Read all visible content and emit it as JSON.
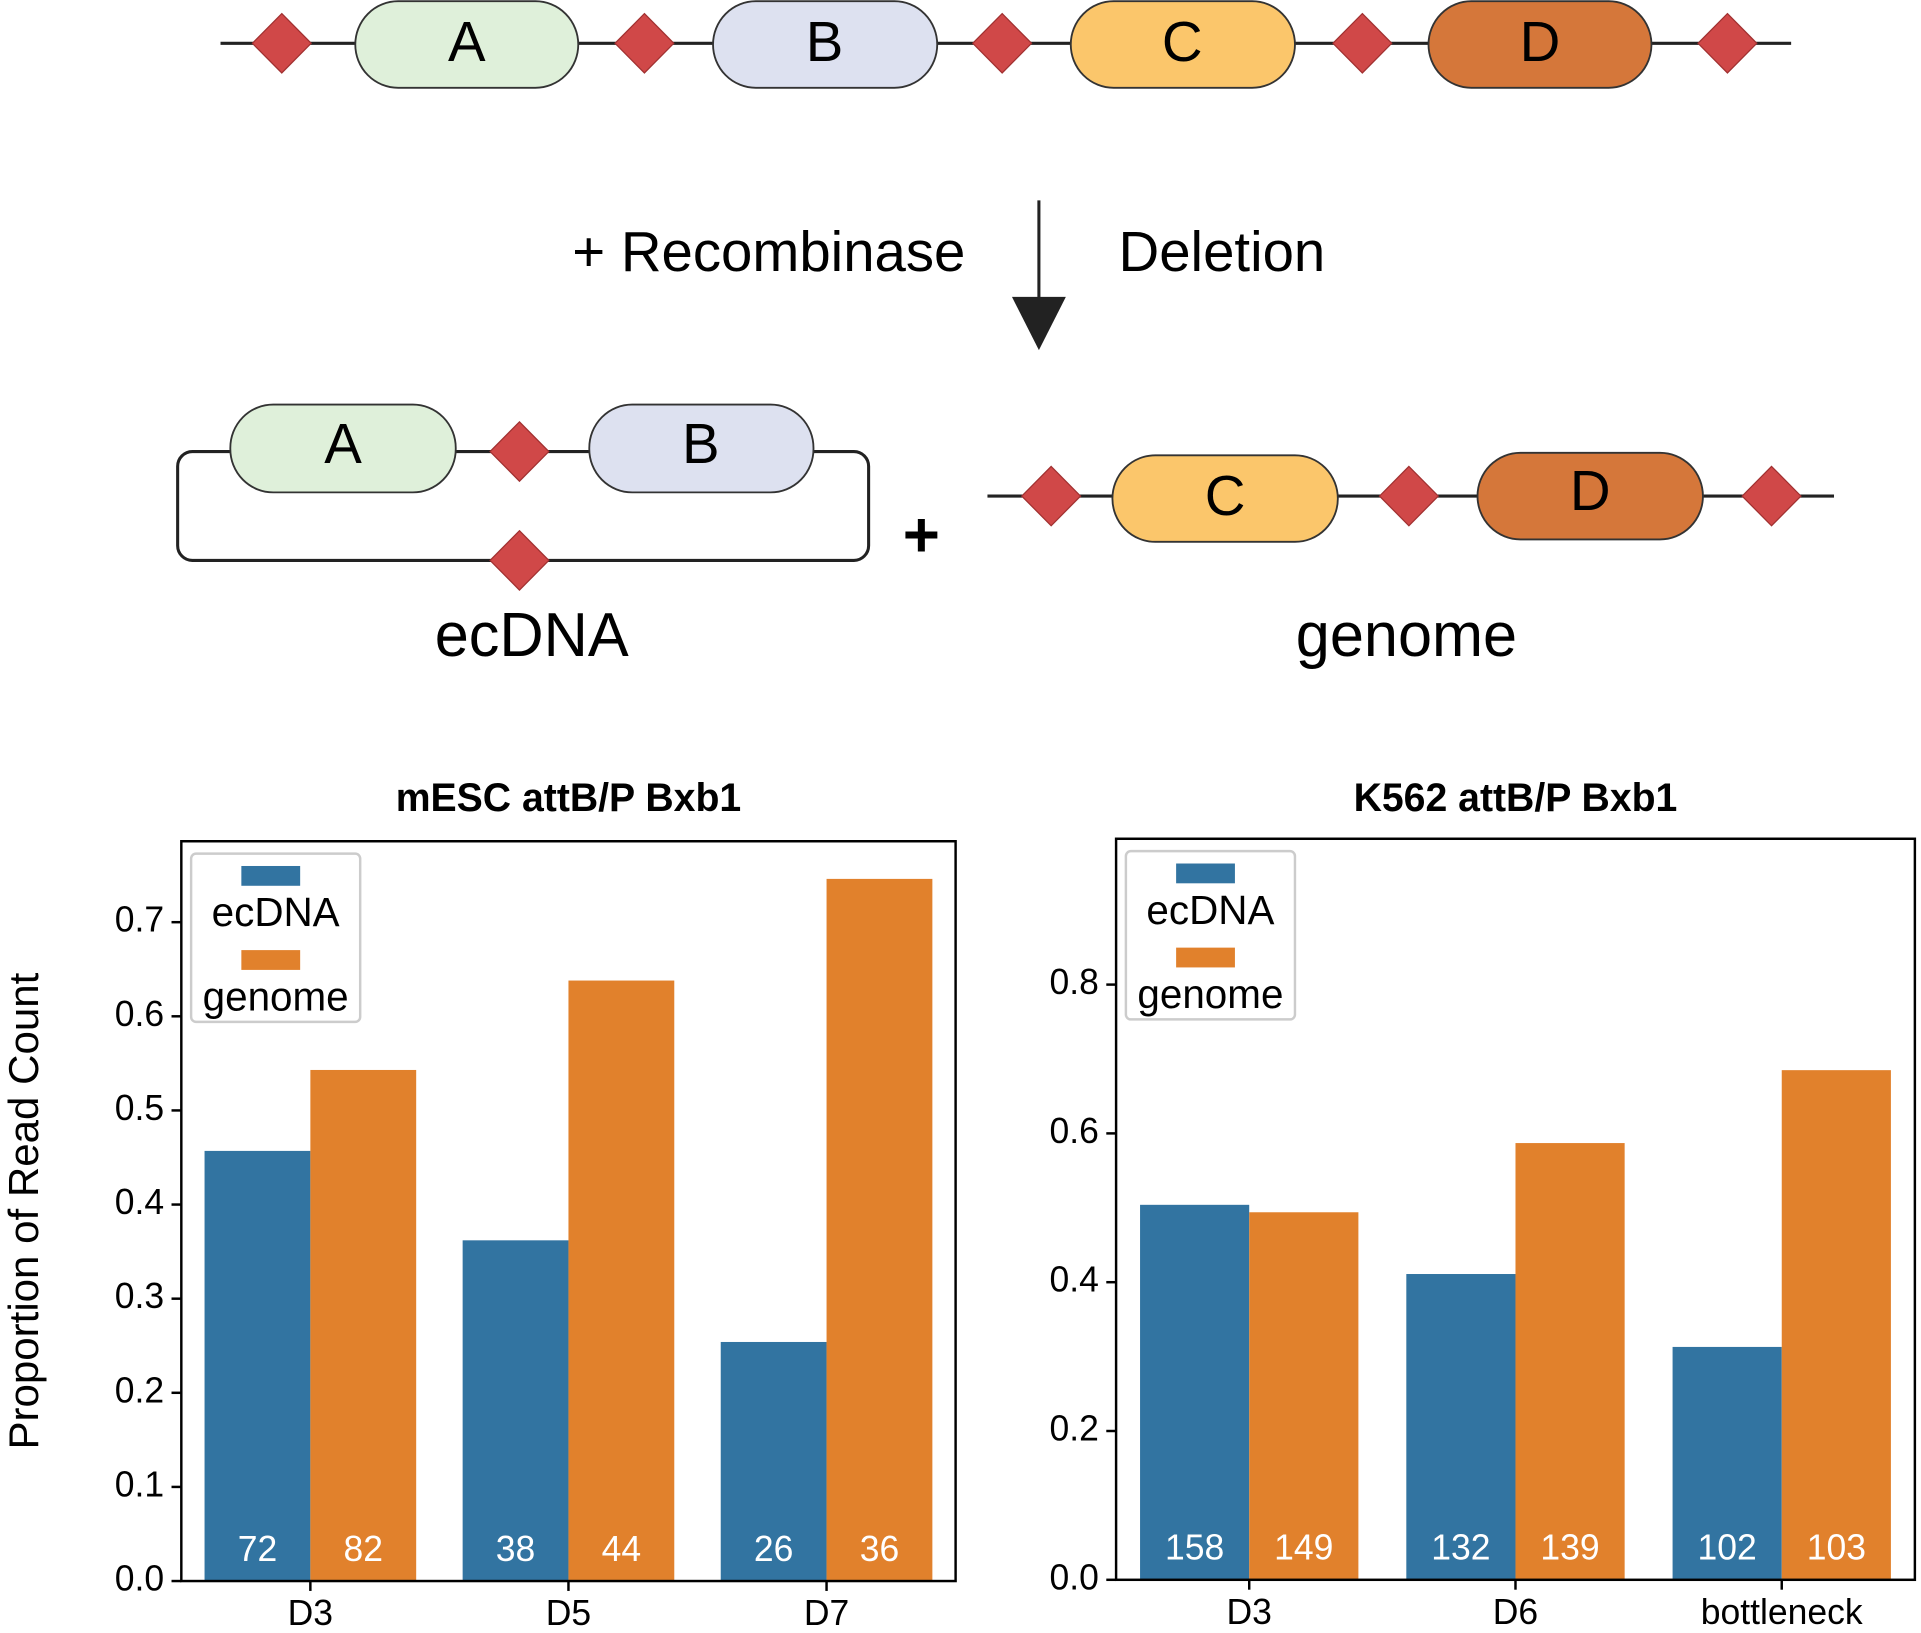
{
  "diagram": {
    "top": [
      "A",
      "B",
      "C",
      "D"
    ],
    "reagent": "+ Recombinase",
    "outcome": "Deletion",
    "ecdna": {
      "segments": [
        "A",
        "B"
      ],
      "label": "ecDNA"
    },
    "plus": "+",
    "genome": {
      "segments": [
        "C",
        "D"
      ],
      "label": "genome"
    }
  },
  "chart_data": [
    {
      "type": "bar",
      "title": "mESC attB/P Bxb1",
      "ylabel": "Proportion of Read Count",
      "categories": [
        "D3",
        "D5",
        "D7"
      ],
      "series": [
        {
          "name": "ecDNA",
          "color": "#3274a1",
          "values": [
            0.457,
            0.362,
            0.254
          ],
          "counts": [
            72,
            38,
            26
          ]
        },
        {
          "name": "genome",
          "color": "#e1812c",
          "values": [
            0.543,
            0.638,
            0.746
          ],
          "counts": [
            82,
            44,
            36
          ]
        }
      ],
      "ylim": [
        0,
        0.786
      ],
      "yticks": [
        {
          "value": 0,
          "label": "0.0"
        },
        0.1,
        0.2,
        0.3,
        0.4,
        0.5,
        0.6,
        0.7
      ],
      "legend": "upper left"
    },
    {
      "type": "bar",
      "title": "K562 attB/P Bxb1",
      "categories": [
        "D3",
        "D6",
        "bottleneck"
      ],
      "series": [
        {
          "name": "ecDNA",
          "color": "#3274a1",
          "values": [
            0.504,
            0.411,
            0.313
          ],
          "counts": [
            158,
            132,
            102
          ]
        },
        {
          "name": "genome",
          "color": "#e1812c",
          "values": [
            0.494,
            0.587,
            0.685
          ],
          "counts": [
            149,
            139,
            103
          ]
        }
      ],
      "ylim": [
        0,
        0.996
      ],
      "yticks": [
        {
          "value": 0,
          "label": "0.0"
        },
        0.2,
        0.4,
        0.6,
        0.8
      ],
      "legend": "upper left"
    }
  ]
}
